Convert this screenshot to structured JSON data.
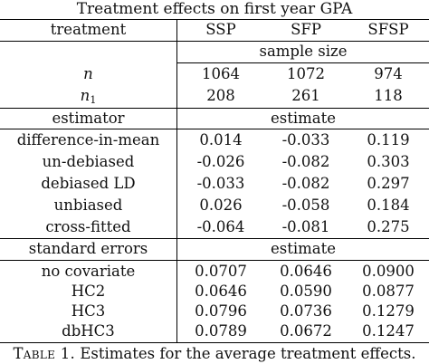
{
  "title": "Treatment effects on first year GPA",
  "header": {
    "treatment": "treatment",
    "cols": [
      "SSP",
      "SFP",
      "SFSP"
    ]
  },
  "sample_size_label": "sample size",
  "n_row": {
    "label": "n",
    "values": [
      "1064",
      "1072",
      "974"
    ]
  },
  "n1_row": {
    "label": "n",
    "label_sub": "1",
    "values": [
      "208",
      "261",
      "118"
    ]
  },
  "estimator_header": {
    "label": "estimator",
    "span": "estimate"
  },
  "estimators": [
    {
      "label": "difference-in-mean",
      "values": [
        "0.014",
        "-0.033",
        "0.119"
      ]
    },
    {
      "label": "un-debiased",
      "values": [
        "-0.026",
        "-0.082",
        "0.303"
      ]
    },
    {
      "label": "debiased LD",
      "values": [
        "-0.033",
        "-0.082",
        "0.297"
      ]
    },
    {
      "label": "unbiased",
      "values": [
        "0.026",
        "-0.058",
        "0.184"
      ]
    },
    {
      "label": "cross-fitted",
      "values": [
        "-0.064",
        "-0.081",
        "0.275"
      ]
    }
  ],
  "se_header": {
    "label": "standard errors",
    "span": "estimate"
  },
  "standard_errors": [
    {
      "label": "no covariate",
      "values": [
        "0.0707",
        "0.0646",
        "0.0900"
      ]
    },
    {
      "label": "HC2",
      "values": [
        "0.0646",
        "0.0590",
        "0.0877"
      ]
    },
    {
      "label": "HC3",
      "values": [
        "0.0796",
        "0.0736",
        "0.1279"
      ]
    },
    {
      "label": "dbHC3",
      "values": [
        "0.0789",
        "0.0672",
        "0.1247"
      ]
    }
  ],
  "caption": {
    "label": "Table 1.",
    "text": " Estimates for the average treatment effects."
  }
}
